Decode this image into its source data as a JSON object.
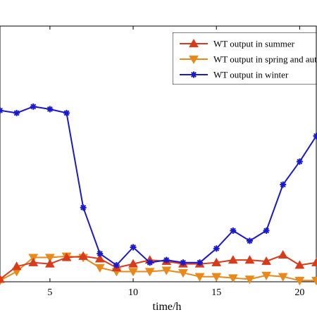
{
  "chart_data": {
    "type": "line",
    "xlabel": "time/h",
    "xlim": [
      2,
      21
    ],
    "ylim": [
      0,
      100
    ],
    "x_ticks": [
      5,
      10,
      15,
      20
    ],
    "x_tick_labels": [
      "5",
      "10",
      "15",
      "20"
    ],
    "legend_position": "top-right",
    "grid": false,
    "x": [
      2,
      3,
      4,
      5,
      6,
      7,
      8,
      9,
      10,
      11,
      12,
      13,
      14,
      15,
      16,
      17,
      18,
      19,
      20,
      21
    ],
    "series": [
      {
        "name": "WT output in summer",
        "color": "#d93b1a",
        "marker": "triangle-up",
        "values": [
          1,
          6,
          7.5,
          7,
          9.5,
          10,
          9,
          5.5,
          7,
          8.5,
          8,
          7,
          7,
          7.5,
          8.5,
          8.5,
          8,
          10.5,
          6.5,
          7.5
        ]
      },
      {
        "name": "WT output in spring and autumn",
        "color": "#e8891a",
        "marker": "triangle-down",
        "values": [
          0.5,
          4,
          9.5,
          9.5,
          10,
          9.5,
          5.5,
          4,
          4,
          4,
          4.5,
          3.5,
          2,
          2,
          1.5,
          1,
          2.5,
          2,
          0.5,
          0.5
        ]
      },
      {
        "name": "WT output in winter",
        "color": "#1a1acc",
        "marker": "asterisk",
        "values": [
          67,
          66,
          68.5,
          67.5,
          66,
          29,
          11,
          6.5,
          13.5,
          7.5,
          8.5,
          7.5,
          7.5,
          13,
          20,
          16,
          20,
          38,
          47,
          57
        ]
      }
    ]
  }
}
